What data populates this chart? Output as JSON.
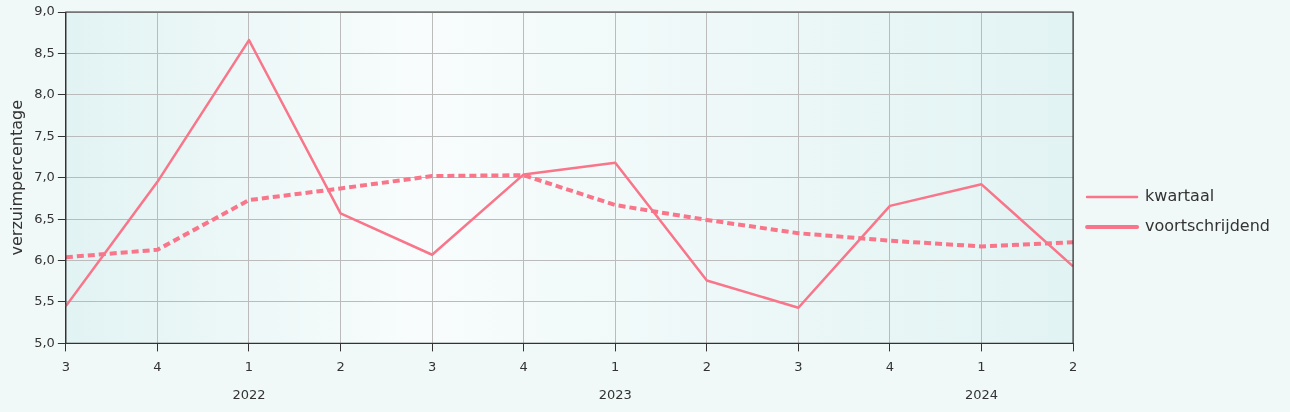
{
  "chart_data": {
    "type": "line",
    "ylabel": "verzuimpercentage",
    "categories": [
      "3",
      "4",
      "1\n2022",
      "2",
      "3",
      "4",
      "1\n2023",
      "2",
      "3",
      "4",
      "1\n2024",
      "2"
    ],
    "series": [
      {
        "name": "kwartaal",
        "color": "#f8758a",
        "line_style": "solid",
        "values": [
          5.45,
          6.95,
          8.66,
          6.57,
          6.07,
          7.04,
          7.18,
          5.76,
          5.43,
          6.66,
          6.92,
          5.93
        ]
      },
      {
        "name": "voortschrijdend",
        "color": "#f8758a",
        "line_style": "dashed",
        "values": [
          6.04,
          6.13,
          6.73,
          6.87,
          7.02,
          7.03,
          6.67,
          6.49,
          6.33,
          6.24,
          6.17,
          6.22
        ]
      }
    ],
    "ylim": [
      5,
      9
    ],
    "yticks": [
      {
        "value": 5,
        "label": "5,0"
      },
      {
        "value": 5.5,
        "label": "5,5"
      },
      {
        "value": 6,
        "label": "6,0"
      },
      {
        "value": 6.5,
        "label": "6,5"
      },
      {
        "value": 7,
        "label": "7,0"
      },
      {
        "value": 7.5,
        "label": "7,5"
      },
      {
        "value": 8,
        "label": "8,0"
      },
      {
        "value": 8.5,
        "label": "8,5"
      },
      {
        "value": 9,
        "label": "9,0"
      }
    ],
    "grid": true,
    "legend": "right",
    "marker": "none"
  }
}
